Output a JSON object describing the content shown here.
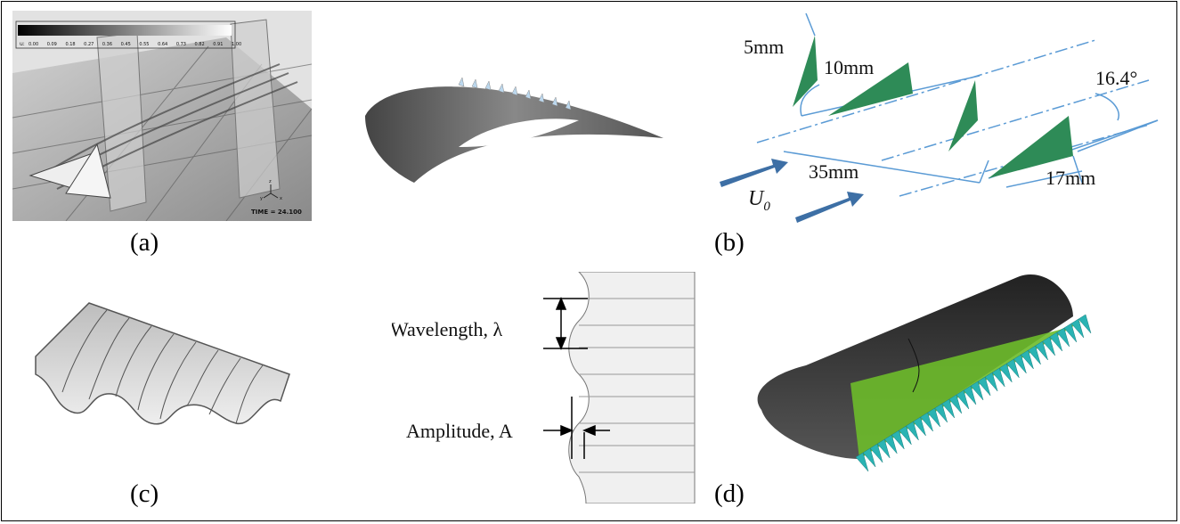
{
  "captions": {
    "a": "(a)",
    "b": "(b)",
    "c": "(c)",
    "d": "(d)"
  },
  "panel_a": {
    "colorbar_prefix": "u:",
    "colorbar_ticks": [
      "0.00",
      "0.09",
      "0.18",
      "0.27",
      "0.36",
      "0.45",
      "0.55",
      "0.64",
      "0.73",
      "0.82",
      "0.91",
      "1.00"
    ],
    "time_label": "TIME = 24.100",
    "axis_labels": {
      "x": "x",
      "y": "y",
      "z": "z"
    }
  },
  "panel_b": {
    "dim_height": "5mm",
    "dim_length": "10mm",
    "dim_spacing": "35mm",
    "dim_pair": "17mm",
    "dim_angle": "16.4°",
    "flow_symbol": "U",
    "flow_subscript": "0",
    "colors": {
      "vane": "#2e8b57",
      "dimension": "#5b9bd5",
      "arrow": "#3d6fa5"
    }
  },
  "panel_wavy": {
    "wavelength_label": "Wavelength, λ",
    "amplitude_label": "Amplitude, A"
  },
  "panel_d": {
    "colors": {
      "body": "#3a3a3a",
      "mesh": "#6dbb2a",
      "serration": "#2ab3b3"
    }
  }
}
